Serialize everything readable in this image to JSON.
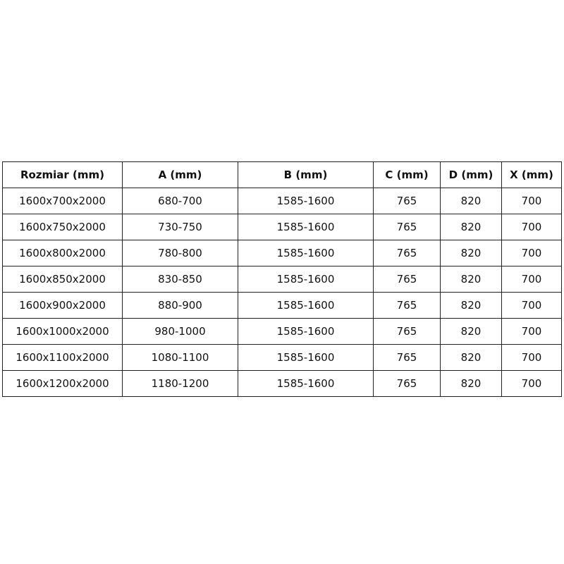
{
  "table": {
    "header": [
      "Rozmiar (mm)",
      "A (mm)",
      "B (mm)",
      "C (mm)",
      "D (mm)",
      "X (mm)"
    ],
    "rows": [
      [
        "1600x700x2000",
        "680-700",
        "1585-1600",
        "765",
        "820",
        "700"
      ],
      [
        "1600x750x2000",
        "730-750",
        "1585-1600",
        "765",
        "820",
        "700"
      ],
      [
        "1600x800x2000",
        "780-800",
        "1585-1600",
        "765",
        "820",
        "700"
      ],
      [
        "1600x850x2000",
        "830-850",
        "1585-1600",
        "765",
        "820",
        "700"
      ],
      [
        "1600x900x2000",
        "880-900",
        "1585-1600",
        "765",
        "820",
        "700"
      ],
      [
        "1600x1000x2000",
        "980-1000",
        "1585-1600",
        "765",
        "820",
        "700"
      ],
      [
        "1600x1100x2000",
        "1080-1100",
        "1585-1600",
        "765",
        "820",
        "700"
      ],
      [
        "1600x1200x2000",
        "1180-1200",
        "1585-1600",
        "765",
        "820",
        "700"
      ]
    ]
  }
}
